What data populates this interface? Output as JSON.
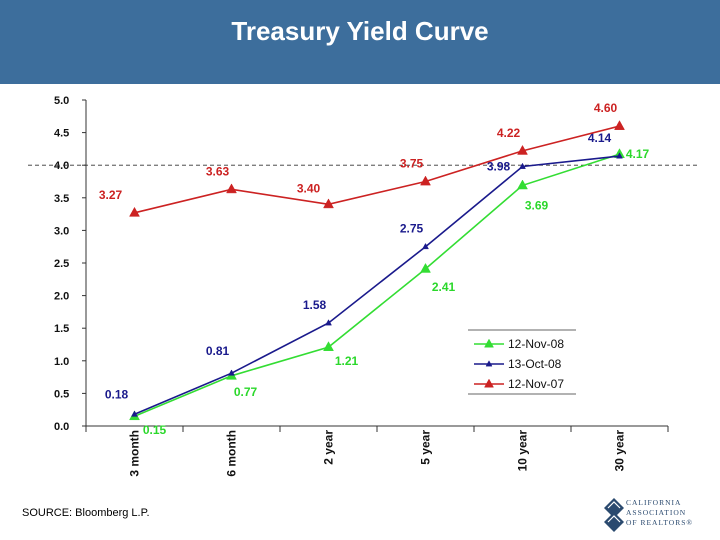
{
  "header": {
    "title": "Treasury Yield Curve"
  },
  "footer": {
    "source": "SOURCE: Bloomberg L.P."
  },
  "logo": {
    "lines": [
      "CALIFORNIA",
      "ASSOCIATION",
      "OF REALTORS®"
    ]
  },
  "colors": {
    "banner": "#3d6e9c",
    "green": "#33dd33",
    "blue": "#1a1a8c",
    "red": "#cc2222"
  },
  "chart_data": {
    "type": "line",
    "categories": [
      "3 month",
      "6 month",
      "2 year",
      "5 year",
      "10 year",
      "30 year"
    ],
    "ylim": [
      0,
      5
    ],
    "yticks": [
      "0.0",
      "0.5",
      "1.0",
      "1.5",
      "2.0",
      "2.5",
      "3.0",
      "3.5",
      "4.0",
      "4.5",
      "5.0"
    ],
    "reference_line": 4.0,
    "legend_position": "bottom-right",
    "series": [
      {
        "name": "12-Nov-08",
        "color": "#33dd33",
        "marker": "triangle",
        "values": [
          0.15,
          0.77,
          1.21,
          2.41,
          3.69,
          4.17
        ],
        "labels": [
          "0.15",
          "0.77",
          "1.21",
          "2.41",
          "3.69",
          "4.17"
        ]
      },
      {
        "name": "13-Oct-08",
        "color": "#1a1a8c",
        "marker": "small-triangle",
        "values": [
          0.18,
          0.81,
          1.58,
          2.75,
          3.98,
          4.14
        ],
        "labels": [
          "0.18",
          "0.81",
          "1.58",
          "2.75",
          "3.98",
          "4.14"
        ]
      },
      {
        "name": "12-Nov-07",
        "color": "#cc2222",
        "marker": "triangle",
        "values": [
          3.27,
          3.63,
          3.4,
          3.75,
          4.22,
          4.6
        ],
        "labels": [
          "3.27",
          "3.63",
          "3.40",
          "3.75",
          "4.22",
          "4.60"
        ]
      }
    ]
  }
}
